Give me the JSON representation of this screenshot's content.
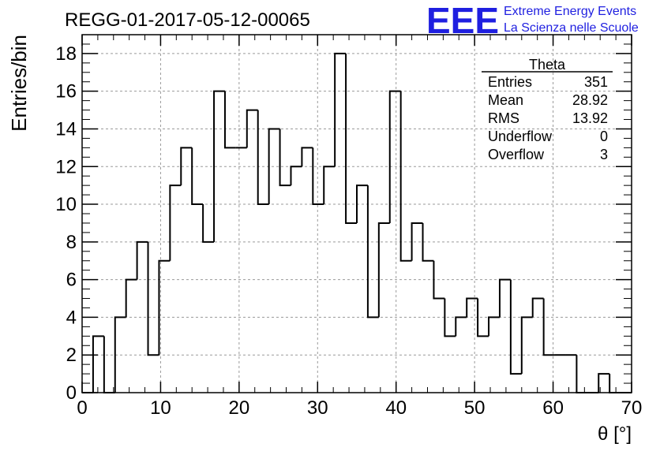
{
  "title": "REGG-01-2017-05-12-00065",
  "logo": {
    "letters": "EEE",
    "line1": "Extreme Energy Events",
    "line2": "La Scienza nelle Scuole",
    "color": "#1f1fe0"
  },
  "stats": {
    "name": "Theta",
    "rows": [
      {
        "label": "Entries",
        "value": "351"
      },
      {
        "label": "Mean",
        "value": "28.92"
      },
      {
        "label": "RMS",
        "value": "13.92"
      },
      {
        "label": "Underflow",
        "value": "0"
      },
      {
        "label": "Overflow",
        "value": "3"
      }
    ]
  },
  "chart_data": {
    "type": "bar",
    "style": "histogram-step",
    "xlabel": "θ [°]",
    "ylabel": "Entries/bin",
    "xlim": [
      0,
      70
    ],
    "ylim": [
      0,
      19
    ],
    "grid": true,
    "bin_width": 1.4,
    "x_ticks": [
      0,
      10,
      20,
      30,
      40,
      50,
      60,
      70
    ],
    "y_ticks": [
      0,
      2,
      4,
      6,
      8,
      10,
      12,
      14,
      16,
      18
    ],
    "bin_edges_start": 0,
    "values": [
      0,
      3,
      0,
      4,
      6,
      8,
      2,
      7,
      11,
      13,
      10,
      8,
      16,
      13,
      13,
      15,
      10,
      14,
      11,
      12,
      13,
      10,
      12,
      18,
      9,
      11,
      4,
      9,
      16,
      7,
      9,
      7,
      5,
      3,
      4,
      5,
      3,
      4,
      6,
      1,
      4,
      5,
      2,
      2,
      2,
      0,
      0,
      1,
      0,
      0
    ]
  }
}
